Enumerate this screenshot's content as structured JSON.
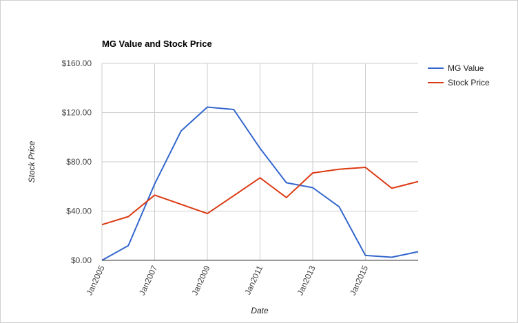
{
  "chart_data": {
    "type": "line",
    "title": "MG Value and Stock Price",
    "xlabel": "Date",
    "ylabel": "Stock Price",
    "x": [
      2005,
      2006,
      2007,
      2008,
      2009,
      2010,
      2011,
      2012,
      2013,
      2014,
      2015,
      2016,
      2017
    ],
    "x_ticks": [
      {
        "value": 2005,
        "label": "Jan2005"
      },
      {
        "value": 2007,
        "label": "Jan2007"
      },
      {
        "value": 2009,
        "label": "Jan2009"
      },
      {
        "value": 2011,
        "label": "Jan2011"
      },
      {
        "value": 2013,
        "label": "Jan2013"
      },
      {
        "value": 2015,
        "label": "Jan2015"
      }
    ],
    "xlim": [
      2005,
      2017
    ],
    "ylim": [
      0,
      160
    ],
    "y_ticks": [
      {
        "value": 0,
        "label": "$0.00"
      },
      {
        "value": 40,
        "label": "$40.00"
      },
      {
        "value": 80,
        "label": "$80.00"
      },
      {
        "value": 120,
        "label": "$120.00"
      },
      {
        "value": 160,
        "label": "$160.00"
      }
    ],
    "grid": true,
    "legend_position": "right",
    "series": [
      {
        "name": "MG Value",
        "color": "#3366cc",
        "values": [
          0,
          12,
          62,
          105,
          124.5,
          122.5,
          91,
          63,
          59,
          43.5,
          4,
          2.5,
          7
        ]
      },
      {
        "name": "Stock Price",
        "color": "#dc3912",
        "values": [
          29,
          35.5,
          53,
          45.5,
          38,
          52.5,
          67,
          51,
          71,
          74,
          75.5,
          58.5,
          64
        ]
      }
    ]
  }
}
